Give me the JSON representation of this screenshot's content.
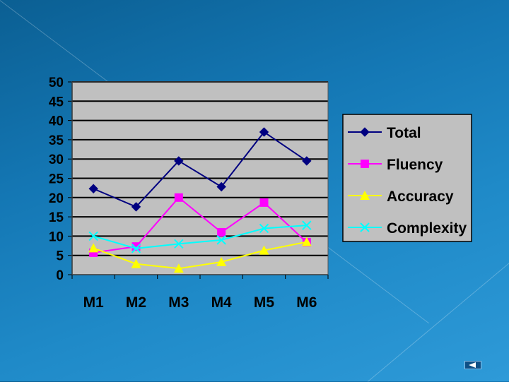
{
  "chart_data": {
    "type": "line",
    "categories": [
      "M1",
      "M2",
      "M3",
      "M4",
      "M5",
      "M6"
    ],
    "ylim": [
      0,
      50
    ],
    "yticks": [
      0,
      5,
      10,
      15,
      20,
      25,
      30,
      35,
      40,
      45,
      50
    ],
    "grid": true,
    "legend": "right",
    "series": [
      {
        "name": "Total",
        "values": [
          22.3,
          17.6,
          29.5,
          22.8,
          37.0,
          29.5
        ],
        "color": "#000080",
        "marker": "diamond"
      },
      {
        "name": "Fluency",
        "values": [
          5.7,
          7.3,
          20.0,
          11.0,
          18.7,
          8.4
        ],
        "color": "#ff00ff",
        "marker": "square"
      },
      {
        "name": "Accuracy",
        "values": [
          6.9,
          2.8,
          1.6,
          3.3,
          6.3,
          8.5
        ],
        "color": "#ffff00",
        "marker": "triangle"
      },
      {
        "name": "Complexity",
        "values": [
          10.0,
          6.8,
          8.0,
          9.0,
          12.0,
          12.8
        ],
        "color": "#00ffff",
        "marker": "x"
      }
    ]
  },
  "colors": {
    "plot_background": "#c0c0c0",
    "grid_line": "#000000",
    "text": "#000000"
  },
  "nav": {
    "icon": "back-arrow-icon"
  }
}
